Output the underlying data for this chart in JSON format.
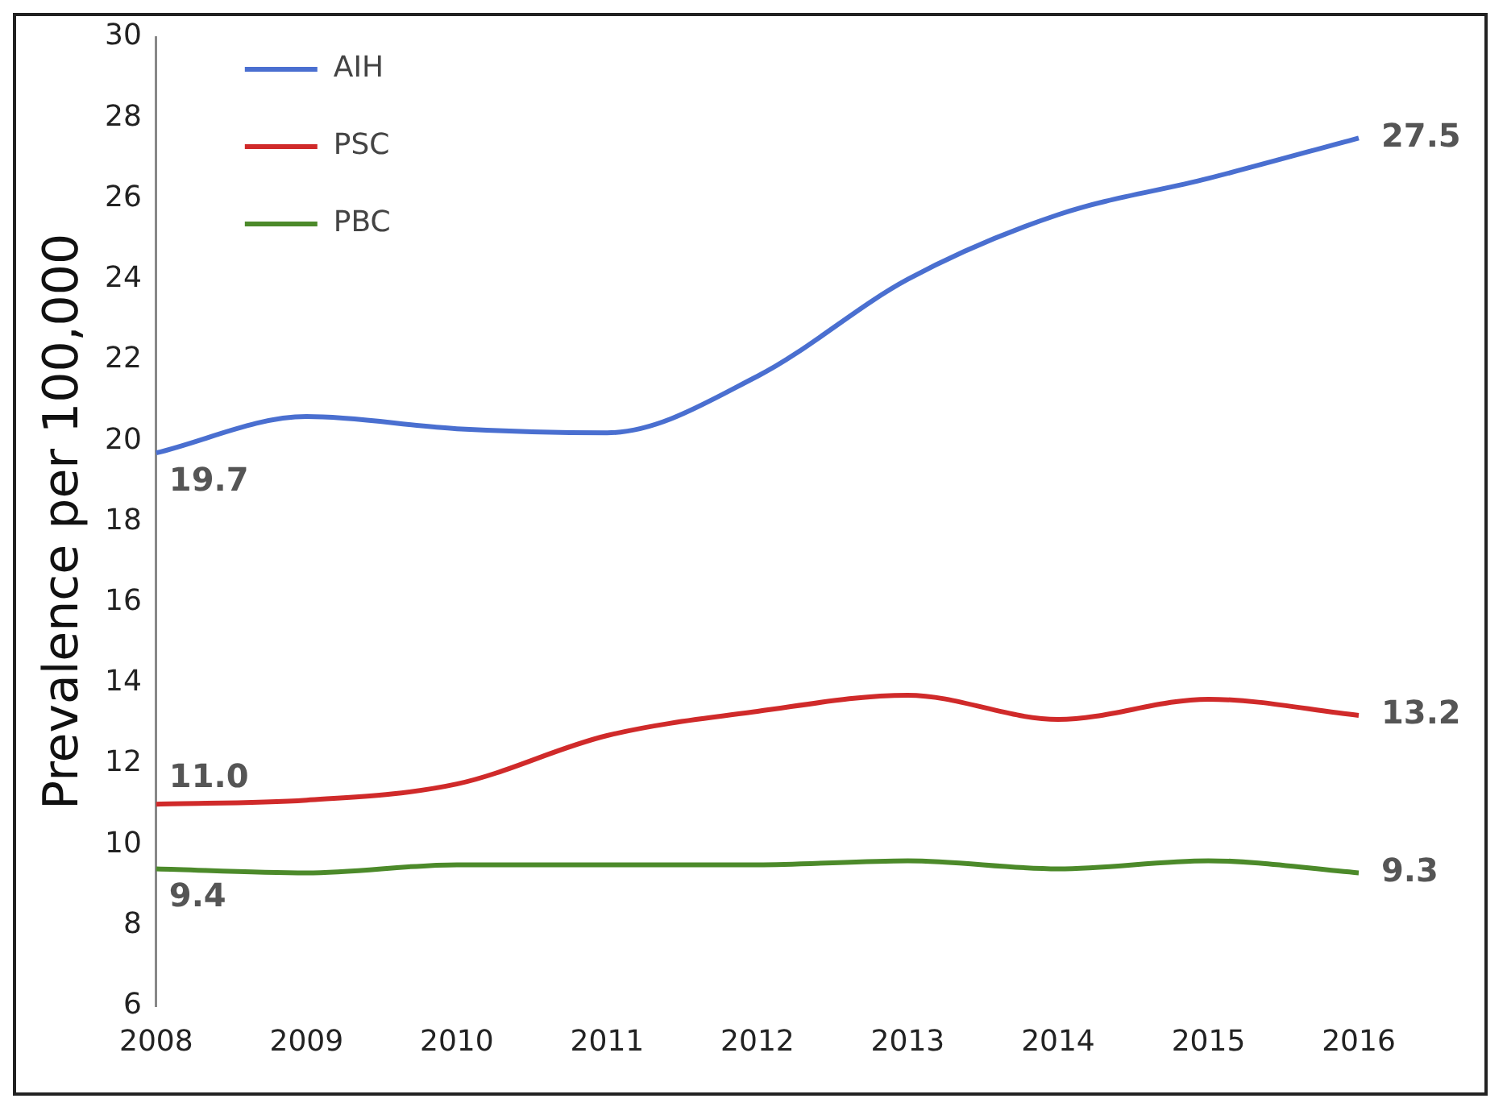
{
  "chart_data": {
    "type": "line",
    "ylabel": "Prevalence per 100,000",
    "categories": [
      "2008",
      "2009",
      "2010",
      "2011",
      "2012",
      "2013",
      "2014",
      "2015",
      "2016"
    ],
    "series": [
      {
        "name": "AIH",
        "color": "#4a6fd0",
        "values": [
          19.7,
          20.6,
          20.3,
          20.2,
          21.6,
          24.0,
          25.6,
          26.5,
          27.5
        ],
        "value_labels": [
          "19.7",
          null,
          null,
          null,
          null,
          null,
          null,
          null,
          "27.5"
        ]
      },
      {
        "name": "PSC",
        "color": "#d02a2a",
        "values": [
          11.0,
          11.1,
          11.5,
          12.7,
          13.3,
          13.7,
          13.1,
          13.6,
          13.2
        ],
        "value_labels": [
          "11.0",
          null,
          null,
          null,
          null,
          null,
          null,
          null,
          "13.2"
        ]
      },
      {
        "name": "PBC",
        "color": "#4c8a2a",
        "values": [
          9.4,
          9.3,
          9.5,
          9.5,
          9.5,
          9.6,
          9.4,
          9.6,
          9.3
        ],
        "value_labels": [
          "9.4",
          null,
          null,
          null,
          null,
          null,
          null,
          null,
          "9.3"
        ]
      }
    ],
    "ylim": [
      6,
      30
    ],
    "yticks": [
      6,
      8,
      10,
      12,
      14,
      16,
      18,
      20,
      22,
      24,
      26,
      28,
      30
    ],
    "grid": false,
    "legend": "top left",
    "marker": "none",
    "line_style": "solid"
  }
}
